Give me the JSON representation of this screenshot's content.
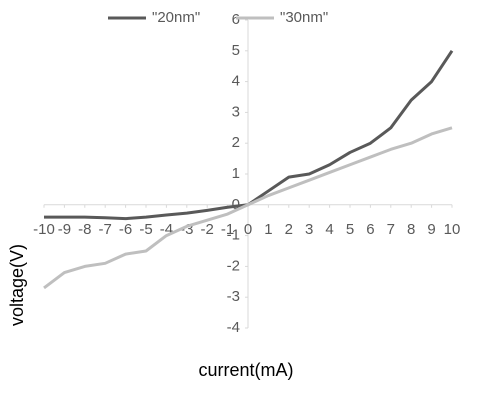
{
  "chart_data": {
    "type": "line",
    "x": [
      -10,
      -9,
      -8,
      -7,
      -6,
      -5,
      -4,
      -3,
      -2,
      -1,
      0,
      1,
      2,
      3,
      4,
      5,
      6,
      7,
      8,
      9,
      10
    ],
    "series": [
      {
        "name": "\"20nm\"",
        "color": "#595959",
        "values": [
          -0.4,
          -0.4,
          -0.4,
          -0.42,
          -0.45,
          -0.4,
          -0.33,
          -0.27,
          -0.18,
          -0.08,
          0,
          0.45,
          0.9,
          1.0,
          1.3,
          1.7,
          2.0,
          2.5,
          3.4,
          4.0,
          5.0
        ]
      },
      {
        "name": "\"30nm\"",
        "color": "#bfbfbf",
        "values": [
          -2.7,
          -2.2,
          -2.0,
          -1.9,
          -1.6,
          -1.5,
          -1.0,
          -0.7,
          -0.5,
          -0.3,
          0,
          0.3,
          0.55,
          0.8,
          1.05,
          1.3,
          1.55,
          1.8,
          2.0,
          2.3,
          2.5
        ]
      }
    ],
    "x_label": "current(mA)",
    "y_label": "voltage(V)",
    "xlim": [
      -10,
      10
    ],
    "xticks": [
      -10,
      -9,
      -8,
      -7,
      -6,
      -5,
      -4,
      -3,
      -2,
      -1,
      0,
      1,
      2,
      3,
      4,
      5,
      6,
      7,
      8,
      9,
      10
    ],
    "ylim": [
      -4,
      6
    ],
    "yticks": [
      -4,
      -3,
      -2,
      -1,
      0,
      1,
      2,
      3,
      4,
      5,
      6
    ],
    "grid": false,
    "legend": "top"
  }
}
